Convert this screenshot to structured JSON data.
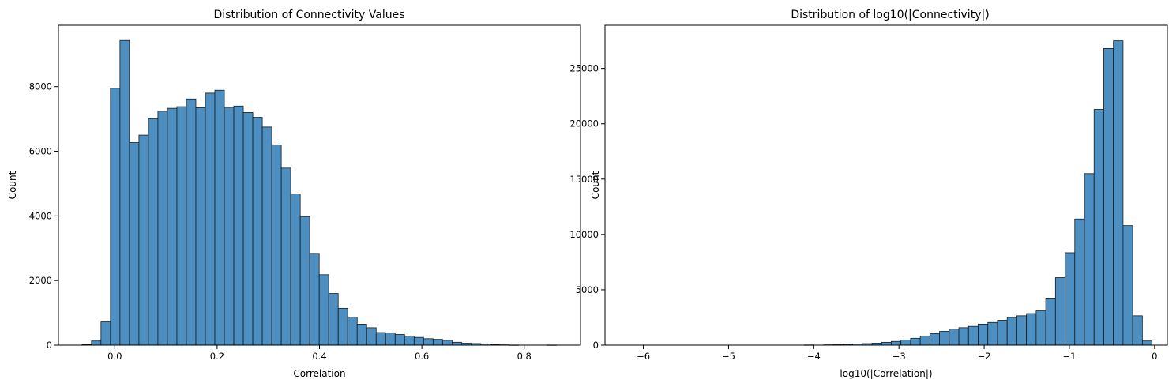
{
  "chart_data": [
    {
      "type": "bar",
      "title": "Distribution of Connectivity Values",
      "xlabel": "Correlation",
      "ylabel": "Count",
      "xlim": [
        -0.11,
        0.91
      ],
      "ylim": [
        0,
        9900
      ],
      "xticks": [
        0.0,
        0.2,
        0.4,
        0.6,
        0.8
      ],
      "xtick_labels": [
        "0.0",
        "0.2",
        "0.4",
        "0.6",
        "0.8"
      ],
      "yticks": [
        0,
        2000,
        4000,
        6000,
        8000
      ],
      "ytick_labels": [
        "0",
        "2000",
        "4000",
        "6000",
        "8000"
      ],
      "bar_color": "#4c8fc0",
      "edge_color": "#1a1a1a",
      "bins": {
        "x_start": -0.064,
        "x_end": 0.863,
        "counts": [
          15,
          130,
          720,
          7950,
          9430,
          6270,
          6500,
          7010,
          7240,
          7330,
          7380,
          7620,
          7350,
          7800,
          7890,
          7360,
          7400,
          7200,
          7050,
          6750,
          6200,
          5480,
          4680,
          3980,
          2840,
          2180,
          1600,
          1140,
          870,
          650,
          540,
          390,
          380,
          330,
          280,
          240,
          200,
          180,
          150,
          90,
          60,
          50,
          40,
          15,
          10,
          5,
          0,
          0,
          0,
          5
        ]
      }
    },
    {
      "type": "bar",
      "title": "Distribution of log10(|Connectivity|)",
      "xlabel": "log10(|Correlation|)",
      "ylabel": "Count",
      "xlim": [
        -6.45,
        0.15
      ],
      "ylim": [
        0,
        28900
      ],
      "xticks": [
        -6,
        -5,
        -4,
        -3,
        -2,
        -1,
        0
      ],
      "xtick_labels": [
        "−6",
        "−5",
        "−4",
        "−3",
        "−2",
        "−1",
        "0"
      ],
      "yticks": [
        0,
        5000,
        10000,
        15000,
        20000,
        25000
      ],
      "ytick_labels": [
        "0",
        "5000",
        "10000",
        "15000",
        "20000",
        "25000"
      ],
      "bar_color": "#4c8fc0",
      "edge_color": "#1a1a1a",
      "bins": {
        "x_start": -6.15,
        "x_end": -0.03,
        "counts": [
          0,
          0,
          0,
          0,
          0,
          0,
          0,
          0,
          0,
          0,
          0,
          0,
          0,
          0,
          0,
          0,
          0,
          0,
          20,
          0,
          30,
          40,
          70,
          100,
          140,
          180,
          260,
          340,
          470,
          620,
          830,
          1050,
          1250,
          1450,
          1580,
          1700,
          1900,
          2050,
          2250,
          2500,
          2650,
          2850,
          3100,
          4250,
          6100,
          8350,
          11400,
          15500,
          21300,
          26800,
          27500,
          10800,
          2650,
          380
        ]
      }
    }
  ]
}
